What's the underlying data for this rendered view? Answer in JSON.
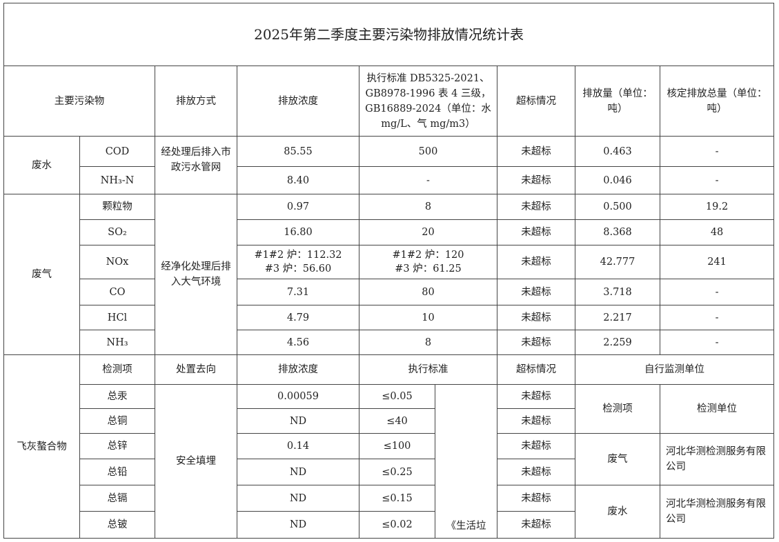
{
  "title": "2025年第二季度主要污染物排放情况统计表",
  "header": {
    "pollutant": "主要污染物",
    "method": "排放方式",
    "concentration": "排放浓度",
    "standard": "执行标准 DB5325-2021、GB8978-1996 表 4 三级，GB16889-2024（单位：水 mg/L、气 mg/m3）",
    "status": "超标情况",
    "amount": "排放量（单位：吨）",
    "quota": "核定排放总量（单位：吨）"
  },
  "wastewater": {
    "group": "废水",
    "method": "经处理后排入市政污水管网",
    "rows": [
      {
        "item": "COD",
        "conc": "85.55",
        "std": "500",
        "status": "未超标",
        "amount": "0.463",
        "quota": "-"
      },
      {
        "item": "NH₃-N",
        "conc": "8.40",
        "std": "-",
        "status": "未超标",
        "amount": "0.046",
        "quota": "-"
      }
    ]
  },
  "wastegas": {
    "group": "废气",
    "method": "经净化处理后排入大气环境",
    "rows": [
      {
        "item": "颗粒物",
        "conc": "0.97",
        "std": "8",
        "status": "未超标",
        "amount": "0.500",
        "quota": "19.2"
      },
      {
        "item": "SO₂",
        "conc": "16.80",
        "std": "20",
        "status": "未超标",
        "amount": "8.368",
        "quota": "48"
      },
      {
        "item": "NOx",
        "conc": "#1#2 炉：112.32\n#3 炉：56.60",
        "std": "#1#2 炉：120\n#3 炉：61.25",
        "status": "未超标",
        "amount": "42.777",
        "quota": "241"
      },
      {
        "item": "CO",
        "conc": "7.31",
        "std": "80",
        "status": "未超标",
        "amount": "3.718",
        "quota": "-"
      },
      {
        "item": "HCl",
        "conc": "4.79",
        "std": "10",
        "status": "未超标",
        "amount": "2.217",
        "quota": "-"
      },
      {
        "item": "NH₃",
        "conc": "4.56",
        "std": "8",
        "status": "未超标",
        "amount": "2.259",
        "quota": "-"
      }
    ]
  },
  "flyash": {
    "group": "飞灰螯合物",
    "header": {
      "item": "检测项",
      "disposal": "处置去向",
      "conc": "排放浓度",
      "std": "执行标准",
      "status": "超标情况",
      "monitor": "自行监测单位"
    },
    "disposal": "安全填埋",
    "std_note": "《生活垃",
    "rows": [
      {
        "item": "总汞",
        "conc": "0.00059",
        "std": "≤0.05",
        "status": "未超标"
      },
      {
        "item": "总铜",
        "conc": "ND",
        "std": "≤40",
        "status": "未超标"
      },
      {
        "item": "总锌",
        "conc": "0.14",
        "std": "≤100",
        "status": "未超标"
      },
      {
        "item": "总铅",
        "conc": "ND",
        "std": "≤0.25",
        "status": "未超标"
      },
      {
        "item": "总镉",
        "conc": "ND",
        "std": "≤0.15",
        "status": "未超标"
      },
      {
        "item": "总铍",
        "conc": "ND",
        "std": "≤0.02",
        "status": "未超标"
      }
    ],
    "monitor": {
      "header_item": "检测项",
      "header_unit": "检测单位",
      "rows": [
        {
          "item": "废气",
          "unit": "河北华测检测服务有限公司"
        },
        {
          "item": "废水",
          "unit": "河北华测检测服务有限公司"
        }
      ]
    }
  }
}
